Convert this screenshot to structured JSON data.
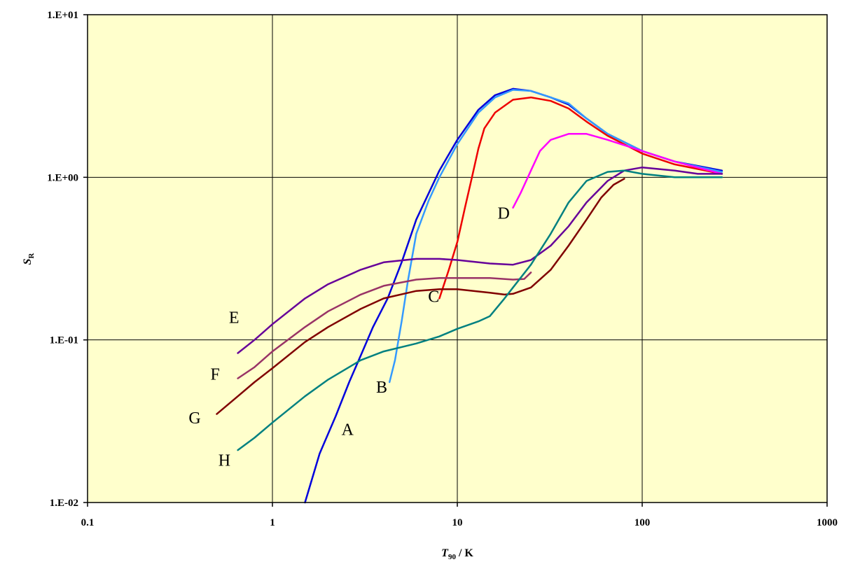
{
  "chart_data": {
    "type": "line",
    "title": "",
    "xlabel": {
      "var": "T",
      "sub": "90",
      "rest": " / K"
    },
    "ylabel": {
      "var": "S",
      "sub": "R"
    },
    "x_scale": "log",
    "y_scale": "log",
    "xlim": [
      0.1,
      1000
    ],
    "ylim": [
      0.01,
      10
    ],
    "x_ticks": [
      "0.1",
      "1",
      "10",
      "100",
      "1000"
    ],
    "y_ticks": [
      "1.E-02",
      "1.E-01",
      "1.E+00",
      "1.E+01"
    ],
    "grid": true,
    "plot_background": "#FFFFCC",
    "legend": "none",
    "series": [
      {
        "name": "A",
        "color": "#0000DD",
        "points": [
          [
            1.5,
            0.01
          ],
          [
            1.8,
            0.02
          ],
          [
            2.2,
            0.034
          ],
          [
            2.6,
            0.055
          ],
          [
            3.0,
            0.08
          ],
          [
            3.5,
            0.12
          ],
          [
            4.2,
            0.18
          ],
          [
            5.0,
            0.3
          ],
          [
            6.0,
            0.55
          ],
          [
            8.0,
            1.1
          ],
          [
            10,
            1.7
          ],
          [
            13,
            2.6
          ],
          [
            16,
            3.2
          ],
          [
            20,
            3.5
          ],
          [
            25,
            3.4
          ],
          [
            32,
            3.1
          ],
          [
            40,
            2.8
          ],
          [
            50,
            2.3
          ],
          [
            65,
            1.85
          ],
          [
            100,
            1.45
          ],
          [
            150,
            1.25
          ],
          [
            270,
            1.1
          ]
        ]
      },
      {
        "name": "B",
        "color": "#3399FF",
        "points": [
          [
            4.3,
            0.055
          ],
          [
            4.6,
            0.075
          ],
          [
            5.0,
            0.13
          ],
          [
            5.4,
            0.23
          ],
          [
            6.0,
            0.45
          ],
          [
            7.0,
            0.72
          ],
          [
            8.0,
            1.0
          ],
          [
            10,
            1.6
          ],
          [
            13,
            2.5
          ],
          [
            16,
            3.1
          ],
          [
            20,
            3.45
          ],
          [
            25,
            3.4
          ],
          [
            32,
            3.1
          ],
          [
            40,
            2.85
          ],
          [
            50,
            2.3
          ],
          [
            65,
            1.85
          ],
          [
            100,
            1.45
          ],
          [
            150,
            1.25
          ],
          [
            270,
            1.08
          ]
        ]
      },
      {
        "name": "C",
        "color": "#EE0000",
        "points": [
          [
            8.0,
            0.18
          ],
          [
            9.0,
            0.27
          ],
          [
            10,
            0.4
          ],
          [
            11,
            0.65
          ],
          [
            12,
            1.0
          ],
          [
            13,
            1.5
          ],
          [
            14,
            2.0
          ],
          [
            16,
            2.5
          ],
          [
            20,
            3.0
          ],
          [
            25,
            3.1
          ],
          [
            32,
            2.95
          ],
          [
            40,
            2.65
          ],
          [
            50,
            2.2
          ],
          [
            65,
            1.8
          ],
          [
            100,
            1.4
          ],
          [
            150,
            1.2
          ],
          [
            270,
            1.05
          ]
        ]
      },
      {
        "name": "D",
        "color": "#FF00FF",
        "points": [
          [
            20,
            0.65
          ],
          [
            22,
            0.8
          ],
          [
            25,
            1.1
          ],
          [
            28,
            1.45
          ],
          [
            32,
            1.7
          ],
          [
            40,
            1.85
          ],
          [
            50,
            1.85
          ],
          [
            65,
            1.7
          ],
          [
            100,
            1.45
          ],
          [
            150,
            1.25
          ],
          [
            270,
            1.05
          ]
        ]
      },
      {
        "name": "E",
        "color": "#660099",
        "points": [
          [
            0.65,
            0.083
          ],
          [
            0.8,
            0.1
          ],
          [
            1.0,
            0.125
          ],
          [
            1.5,
            0.18
          ],
          [
            2.0,
            0.22
          ],
          [
            3.0,
            0.27
          ],
          [
            4.0,
            0.3
          ],
          [
            6.0,
            0.315
          ],
          [
            8.0,
            0.315
          ],
          [
            10,
            0.31
          ],
          [
            15,
            0.295
          ],
          [
            20,
            0.29
          ],
          [
            25,
            0.31
          ],
          [
            32,
            0.38
          ],
          [
            40,
            0.5
          ],
          [
            50,
            0.7
          ],
          [
            65,
            0.95
          ],
          [
            80,
            1.1
          ],
          [
            100,
            1.15
          ],
          [
            150,
            1.1
          ],
          [
            200,
            1.05
          ],
          [
            270,
            1.05
          ]
        ]
      },
      {
        "name": "F",
        "color": "#993366",
        "points": [
          [
            0.65,
            0.058
          ],
          [
            0.8,
            0.068
          ],
          [
            1.0,
            0.085
          ],
          [
            1.5,
            0.12
          ],
          [
            2.0,
            0.15
          ],
          [
            3.0,
            0.19
          ],
          [
            4.0,
            0.215
          ],
          [
            6.0,
            0.235
          ],
          [
            8.0,
            0.24
          ],
          [
            10,
            0.24
          ],
          [
            15,
            0.24
          ],
          [
            20,
            0.235
          ],
          [
            23,
            0.237
          ],
          [
            25,
            0.26
          ]
        ]
      },
      {
        "name": "G",
        "color": "#800000",
        "points": [
          [
            0.5,
            0.035
          ],
          [
            0.65,
            0.045
          ],
          [
            0.8,
            0.055
          ],
          [
            1.0,
            0.067
          ],
          [
            1.5,
            0.097
          ],
          [
            2.0,
            0.12
          ],
          [
            3.0,
            0.155
          ],
          [
            4.0,
            0.18
          ],
          [
            6.0,
            0.2
          ],
          [
            8.0,
            0.205
          ],
          [
            10,
            0.205
          ],
          [
            15,
            0.195
          ],
          [
            18,
            0.19
          ],
          [
            20,
            0.192
          ],
          [
            25,
            0.21
          ],
          [
            32,
            0.27
          ],
          [
            40,
            0.38
          ],
          [
            50,
            0.55
          ],
          [
            60,
            0.75
          ],
          [
            70,
            0.9
          ],
          [
            80,
            0.98
          ]
        ]
      },
      {
        "name": "H",
        "color": "#008080",
        "points": [
          [
            0.65,
            0.021
          ],
          [
            0.8,
            0.025
          ],
          [
            1.0,
            0.031
          ],
          [
            1.5,
            0.045
          ],
          [
            2.0,
            0.057
          ],
          [
            3.0,
            0.075
          ],
          [
            4.0,
            0.085
          ],
          [
            6.0,
            0.095
          ],
          [
            8.0,
            0.105
          ],
          [
            10,
            0.117
          ],
          [
            13,
            0.13
          ],
          [
            15,
            0.14
          ],
          [
            18,
            0.18
          ],
          [
            20,
            0.21
          ],
          [
            25,
            0.29
          ],
          [
            32,
            0.45
          ],
          [
            40,
            0.7
          ],
          [
            50,
            0.95
          ],
          [
            65,
            1.08
          ],
          [
            80,
            1.1
          ],
          [
            100,
            1.05
          ],
          [
            150,
            1.0
          ],
          [
            270,
            1.0
          ]
        ]
      }
    ],
    "curve_labels": [
      {
        "text": "A",
        "x": 2.55,
        "y": 0.026
      },
      {
        "text": "B",
        "x": 3.9,
        "y": 0.0475
      },
      {
        "text": "C",
        "x": 7.45,
        "y": 0.171
      },
      {
        "text": "D",
        "x": 17.8,
        "y": 0.555
      },
      {
        "text": "E",
        "x": 0.62,
        "y": 0.127
      },
      {
        "text": "F",
        "x": 0.49,
        "y": 0.057
      },
      {
        "text": "G",
        "x": 0.38,
        "y": 0.0306
      },
      {
        "text": "H",
        "x": 0.55,
        "y": 0.0168
      }
    ]
  }
}
